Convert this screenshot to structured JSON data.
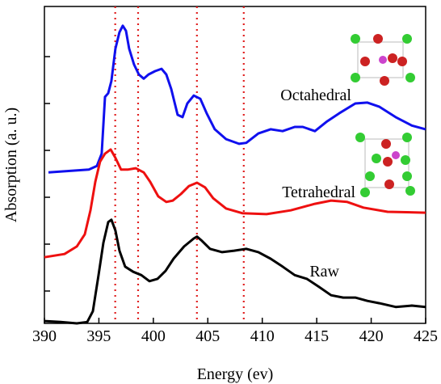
{
  "chart_data": {
    "type": "line",
    "xlabel": "Energy (ev)",
    "ylabel": "Absorption (a. u.)",
    "xlim": [
      390,
      425
    ],
    "xticks": [
      390,
      395,
      400,
      405,
      410,
      415,
      420,
      425
    ],
    "ylim": [
      -0.69,
      6.07
    ],
    "yticks": [
      0,
      1,
      2,
      3,
      4,
      5
    ],
    "reference_lines": {
      "x": [
        396.5,
        398.6,
        404,
        408.3
      ],
      "color": "#e02020"
    },
    "annotations": [
      {
        "text": "Octahedral"
      },
      {
        "text": "Tetrahedral"
      },
      {
        "text": "Raw"
      }
    ],
    "series": [
      {
        "name": "Octahedral",
        "color": "#1010ee",
        "x": [
          390.37,
          394.08,
          394.82,
          395.26,
          395.56,
          395.86,
          396.15,
          396.52,
          396.89,
          397.19,
          397.49,
          397.78,
          398.23,
          398.67,
          399.12,
          399.56,
          400.16,
          400.75,
          401.19,
          401.64,
          402.23,
          402.68,
          403.12,
          403.71,
          404.31,
          404.9,
          405.64,
          406.68,
          407.87,
          408.53,
          409.64,
          410.76,
          411.87,
          412.98,
          413.72,
          414.83,
          415.95,
          417.06,
          418.54,
          419.65,
          420.76,
          422.25,
          423.73,
          424.99
        ],
        "values": [
          2.53,
          2.59,
          2.67,
          2.93,
          4.14,
          4.22,
          4.48,
          5.17,
          5.52,
          5.66,
          5.55,
          5.17,
          4.83,
          4.62,
          4.53,
          4.62,
          4.69,
          4.74,
          4.62,
          4.31,
          3.76,
          3.71,
          4.0,
          4.17,
          4.1,
          3.79,
          3.45,
          3.24,
          3.14,
          3.16,
          3.36,
          3.45,
          3.41,
          3.5,
          3.5,
          3.41,
          3.62,
          3.79,
          4.0,
          4.02,
          3.93,
          3.71,
          3.53,
          3.45
        ]
      },
      {
        "name": "Tetrahedral",
        "color": "#ee1010",
        "x": [
          390,
          391.85,
          392.97,
          393.71,
          394.23,
          394.67,
          395.11,
          395.56,
          396.08,
          396.52,
          397.04,
          397.64,
          398.38,
          399.12,
          399.71,
          400.45,
          401.19,
          401.79,
          402.53,
          403.27,
          404.01,
          404.75,
          405.49,
          406.68,
          408.16,
          410.39,
          412.61,
          414.83,
          416.32,
          417.8,
          419.28,
          421.51,
          424.99
        ],
        "values": [
          0.72,
          0.79,
          0.95,
          1.21,
          1.72,
          2.33,
          2.76,
          2.93,
          3.02,
          2.84,
          2.59,
          2.59,
          2.62,
          2.53,
          2.33,
          2.02,
          1.9,
          1.93,
          2.07,
          2.24,
          2.31,
          2.21,
          1.98,
          1.76,
          1.66,
          1.64,
          1.72,
          1.86,
          1.93,
          1.9,
          1.78,
          1.69,
          1.67
        ]
      },
      {
        "name": "Raw",
        "color": "#000000",
        "x": [
          390,
          391.48,
          392.97,
          393.93,
          394.45,
          394.97,
          395.41,
          395.86,
          396.15,
          396.52,
          396.89,
          397.41,
          398.15,
          398.9,
          399.64,
          400.38,
          401.12,
          401.86,
          402.82,
          403.71,
          404.01,
          404.46,
          405.2,
          406.31,
          407.42,
          408.53,
          409.64,
          410.76,
          411.87,
          412.98,
          414.09,
          415.2,
          416.32,
          417.43,
          418.54,
          419.65,
          420.76,
          422.25,
          423.73,
          424.99
        ],
        "values": [
          -0.64,
          -0.66,
          -0.69,
          -0.66,
          -0.43,
          0.34,
          1.03,
          1.47,
          1.52,
          1.29,
          0.86,
          0.52,
          0.41,
          0.34,
          0.21,
          0.26,
          0.43,
          0.69,
          0.95,
          1.12,
          1.16,
          1.07,
          0.9,
          0.83,
          0.86,
          0.9,
          0.83,
          0.69,
          0.52,
          0.34,
          0.26,
          0.09,
          -0.09,
          -0.14,
          -0.14,
          -0.21,
          -0.26,
          -0.34,
          -0.31,
          -0.34
        ]
      }
    ]
  }
}
